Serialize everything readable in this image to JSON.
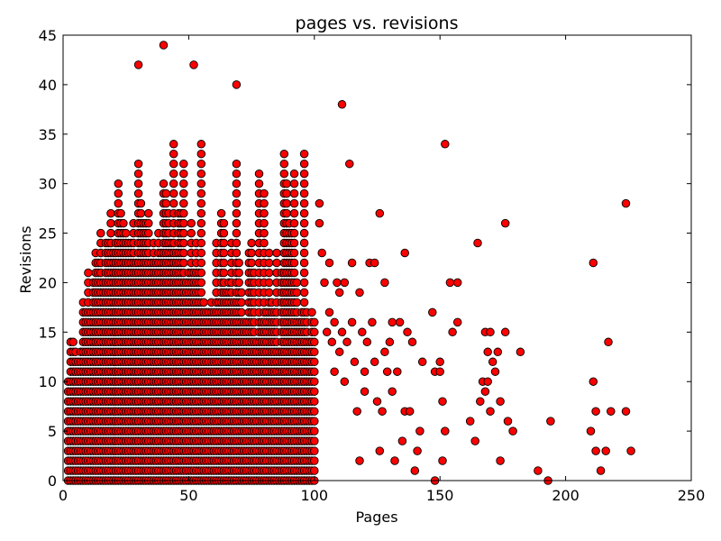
{
  "chart_data": {
    "type": "scatter",
    "title": "pages vs. revisions",
    "xlabel": "Pages",
    "ylabel": "Revisions",
    "xlim": [
      0,
      250
    ],
    "ylim": [
      0,
      45
    ],
    "xticks": [
      "0",
      "50",
      "100",
      "150",
      "200",
      "250"
    ],
    "yticks": [
      "0",
      "5",
      "10",
      "15",
      "20",
      "25",
      "30",
      "35",
      "40",
      "45"
    ],
    "grid": false,
    "marker_color": "#ff0000",
    "marker_edge": "#000000",
    "x_dense": [
      2,
      3,
      4,
      5,
      6,
      7,
      8,
      9,
      10,
      11,
      12,
      13,
      14,
      15,
      16,
      17,
      18,
      19,
      20,
      21,
      22,
      23,
      24,
      25,
      26,
      27,
      28,
      29,
      30,
      31,
      32,
      33,
      34,
      35,
      36,
      37,
      38,
      39,
      40,
      41,
      42,
      43,
      44,
      45,
      46,
      47,
      48,
      49,
      50,
      51,
      52,
      53,
      54,
      55,
      56,
      57,
      58,
      59,
      60,
      61,
      62,
      63,
      64,
      65,
      66,
      67,
      68,
      69,
      70,
      71,
      72,
      73,
      74,
      75,
      76,
      77,
      78,
      79,
      80,
      81,
      82,
      83,
      84,
      85,
      86,
      87,
      88,
      89,
      90,
      91,
      92,
      93,
      94,
      95,
      96,
      97,
      98,
      99,
      100
    ],
    "y_dense_max": [
      10,
      14,
      14,
      13,
      12,
      13,
      18,
      17,
      21,
      17,
      20,
      23,
      22,
      25,
      20,
      24,
      24,
      27,
      23,
      24,
      30,
      27,
      26,
      25,
      24,
      24,
      26,
      22,
      32,
      28,
      26,
      26,
      27,
      22,
      24,
      22,
      25,
      23,
      30,
      29,
      27,
      24,
      34,
      23,
      27,
      27,
      32,
      20,
      21,
      26,
      21,
      24,
      21,
      34,
      18,
      17,
      17,
      18,
      17,
      24,
      18,
      27,
      26,
      19,
      20,
      24,
      18,
      32,
      22,
      19,
      16,
      16,
      23,
      24,
      21,
      14,
      31,
      16,
      29,
      17,
      23,
      18,
      17,
      23,
      13,
      21,
      33,
      30,
      26,
      25,
      31,
      20,
      16,
      17,
      33,
      17,
      14,
      17,
      16
    ],
    "x_sparse": [
      102,
      102,
      103,
      104,
      105,
      106,
      106,
      107,
      108,
      108,
      109,
      110,
      110,
      111,
      111,
      112,
      112,
      113,
      114,
      115,
      115,
      116,
      117,
      118,
      118,
      119,
      120,
      120,
      121,
      122,
      123,
      124,
      124,
      125,
      126,
      126,
      127,
      128,
      128,
      129,
      130,
      131,
      131,
      132,
      133,
      134,
      135,
      136,
      136,
      137,
      138,
      139,
      140,
      141,
      142,
      143,
      147,
      148,
      148,
      150,
      150,
      151,
      151,
      152,
      152,
      154,
      155,
      157,
      157,
      162,
      164,
      165,
      166,
      167,
      168,
      168,
      169,
      169,
      170,
      170,
      171,
      172,
      173,
      174,
      174,
      176,
      176,
      177,
      179,
      182,
      189,
      193,
      194,
      210,
      211,
      211,
      212,
      212,
      214,
      216,
      217,
      218,
      224,
      224,
      226
    ],
    "y_sparse": [
      28,
      26,
      23,
      20,
      15,
      17,
      22,
      14,
      11,
      16,
      20,
      13,
      19,
      15,
      38,
      10,
      20,
      14,
      32,
      22,
      16,
      12,
      7,
      2,
      19,
      15,
      11,
      9,
      14,
      22,
      16,
      12,
      22,
      8,
      27,
      3,
      7,
      20,
      13,
      11,
      14,
      16,
      9,
      2,
      11,
      16,
      4,
      23,
      7,
      15,
      7,
      14,
      1,
      3,
      5,
      12,
      17,
      0,
      11,
      11,
      12,
      2,
      8,
      34,
      5,
      20,
      15,
      20,
      16,
      6,
      4,
      24,
      8,
      10,
      9,
      15,
      13,
      10,
      15,
      7,
      12,
      11,
      13,
      8,
      2,
      15,
      26,
      6,
      5,
      13,
      1,
      0,
      6,
      5,
      10,
      22,
      3,
      7,
      1,
      3,
      14,
      7,
      28,
      7,
      3
    ],
    "outliers_x": [
      30,
      40,
      52,
      69
    ],
    "outliers_y": [
      42,
      44,
      42,
      40
    ]
  }
}
